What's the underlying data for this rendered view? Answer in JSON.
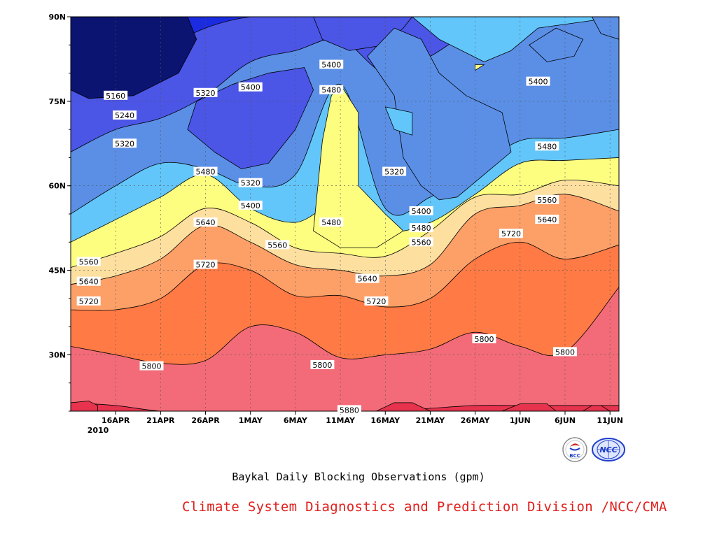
{
  "chart_data": {
    "type": "contour",
    "title": "Baykal Daily Blocking Observations (gpm)",
    "credit": "Climate System Diagnostics and Prediction Division /NCC/CMA",
    "x_ticks": [
      "16APR",
      "21APR",
      "26APR",
      "1MAY",
      "6MAY",
      "11MAY",
      "16MAY",
      "21MAY",
      "26MAY",
      "1JUN",
      "6JUN",
      "11JUN"
    ],
    "x_year": "2010",
    "y_ticks": [
      "30N",
      "45N",
      "60N",
      "75N",
      "90N"
    ],
    "xlim": [
      "2010-04-11",
      "2010-06-11"
    ],
    "ylim": [
      20,
      90
    ],
    "grid": "dotted",
    "contour_levels": [
      5160,
      5240,
      5320,
      5400,
      5480,
      5560,
      5640,
      5720,
      5800,
      5880
    ],
    "contour_labels": [
      {
        "value": "5160",
        "date": "2010-04-16",
        "lat": 76
      },
      {
        "value": "5240",
        "date": "2010-04-17",
        "lat": 72.5
      },
      {
        "value": "5320",
        "date": "2010-04-17",
        "lat": 67.5
      },
      {
        "value": "5320",
        "date": "2010-04-26",
        "lat": 76.5
      },
      {
        "value": "5400",
        "date": "2010-05-01",
        "lat": 77.5
      },
      {
        "value": "5400",
        "date": "2010-05-10",
        "lat": 81.5
      },
      {
        "value": "5480",
        "date": "2010-05-10",
        "lat": 77
      },
      {
        "value": "5480",
        "date": "2010-04-26",
        "lat": 62.5
      },
      {
        "value": "5320",
        "date": "2010-05-01",
        "lat": 60.5
      },
      {
        "value": "5400",
        "date": "2010-05-01",
        "lat": 56.5
      },
      {
        "value": "5320",
        "date": "2010-05-17",
        "lat": 62.5
      },
      {
        "value": "5480",
        "date": "2010-05-10",
        "lat": 53.5
      },
      {
        "value": "5400",
        "date": "2010-05-20",
        "lat": 55.5
      },
      {
        "value": "5480",
        "date": "2010-05-20",
        "lat": 52.5
      },
      {
        "value": "5560",
        "date": "2010-05-20",
        "lat": 50
      },
      {
        "value": "5560",
        "date": "2010-05-04",
        "lat": 49.5
      },
      {
        "value": "5640",
        "date": "2010-04-26",
        "lat": 53.5
      },
      {
        "value": "5560",
        "date": "2010-04-13",
        "lat": 46.5
      },
      {
        "value": "5640",
        "date": "2010-04-13",
        "lat": 43
      },
      {
        "value": "5720",
        "date": "2010-04-13",
        "lat": 39.5
      },
      {
        "value": "5720",
        "date": "2010-04-26",
        "lat": 46
      },
      {
        "value": "5640",
        "date": "2010-05-14",
        "lat": 43.5
      },
      {
        "value": "5720",
        "date": "2010-05-15",
        "lat": 39.5
      },
      {
        "value": "5720",
        "date": "2010-05-30",
        "lat": 51.5
      },
      {
        "value": "5560",
        "date": "2010-06-03",
        "lat": 57.5
      },
      {
        "value": "5640",
        "date": "2010-06-03",
        "lat": 54
      },
      {
        "value": "5480",
        "date": "2010-06-03",
        "lat": 67
      },
      {
        "value": "5400",
        "date": "2010-06-02",
        "lat": 78.5
      },
      {
        "value": "5800",
        "date": "2010-04-20",
        "lat": 28
      },
      {
        "value": "5800",
        "date": "2010-05-09",
        "lat": 28.2
      },
      {
        "value": "5800",
        "date": "2010-05-27",
        "lat": 32.8
      },
      {
        "value": "5800",
        "date": "2010-06-05",
        "lat": 30.5
      },
      {
        "value": "5880",
        "date": "2010-05-12",
        "lat": 20.2
      }
    ],
    "colors": {
      "below_5160": "#0b1470",
      "5160_5240": "#1b2be0",
      "5240_5320": "#4b55e6",
      "5320_5400": "#5b8fe6",
      "5400_5480": "#63c6fa",
      "5480_5560": "#fdfd80",
      "5560_5640": "#fde0a0",
      "5640_5720": "#fda068",
      "5720_5800": "#ff7a44",
      "5800_5880": "#f36b78",
      "above_5880": "#e8334e"
    }
  },
  "logos": [
    {
      "icon": "bcc-logo",
      "text": "BCC",
      "color": "#d42020"
    },
    {
      "icon": "ncc-logo",
      "text": "NCC",
      "color": "#2040c8"
    }
  ]
}
